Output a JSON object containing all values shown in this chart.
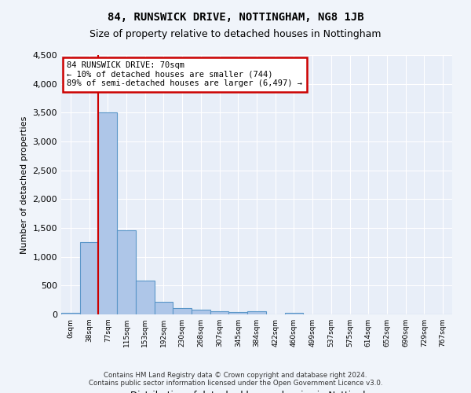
{
  "title1": "84, RUNSWICK DRIVE, NOTTINGHAM, NG8 1JB",
  "title2": "Size of property relative to detached houses in Nottingham",
  "xlabel": "Distribution of detached houses by size in Nottingham",
  "ylabel": "Number of detached properties",
  "footer1": "Contains HM Land Registry data © Crown copyright and database right 2024.",
  "footer2": "Contains public sector information licensed under the Open Government Licence v3.0.",
  "bin_labels": [
    "0sqm",
    "38sqm",
    "77sqm",
    "115sqm",
    "153sqm",
    "192sqm",
    "230sqm",
    "268sqm",
    "307sqm",
    "345sqm",
    "384sqm",
    "422sqm",
    "460sqm",
    "499sqm",
    "537sqm",
    "575sqm",
    "614sqm",
    "652sqm",
    "690sqm",
    "729sqm",
    "767sqm"
  ],
  "bar_values": [
    30,
    1260,
    3500,
    1460,
    580,
    220,
    110,
    80,
    50,
    40,
    50,
    0,
    30,
    0,
    0,
    0,
    0,
    0,
    0,
    0,
    0
  ],
  "bar_color": "#aec6e8",
  "bar_edge_color": "#5a96c8",
  "red_line_x": 1.5,
  "annotation_text1": "84 RUNSWICK DRIVE: 70sqm",
  "annotation_text2": "← 10% of detached houses are smaller (744)",
  "annotation_text3": "89% of semi-detached houses are larger (6,497) →",
  "annotation_box_color": "#cc0000",
  "ylim": [
    0,
    4500
  ],
  "yticks": [
    0,
    500,
    1000,
    1500,
    2000,
    2500,
    3000,
    3500,
    4000,
    4500
  ],
  "bg_color": "#f0f4fa",
  "plot_bg_color": "#e8eef8",
  "grid_color": "#ffffff"
}
